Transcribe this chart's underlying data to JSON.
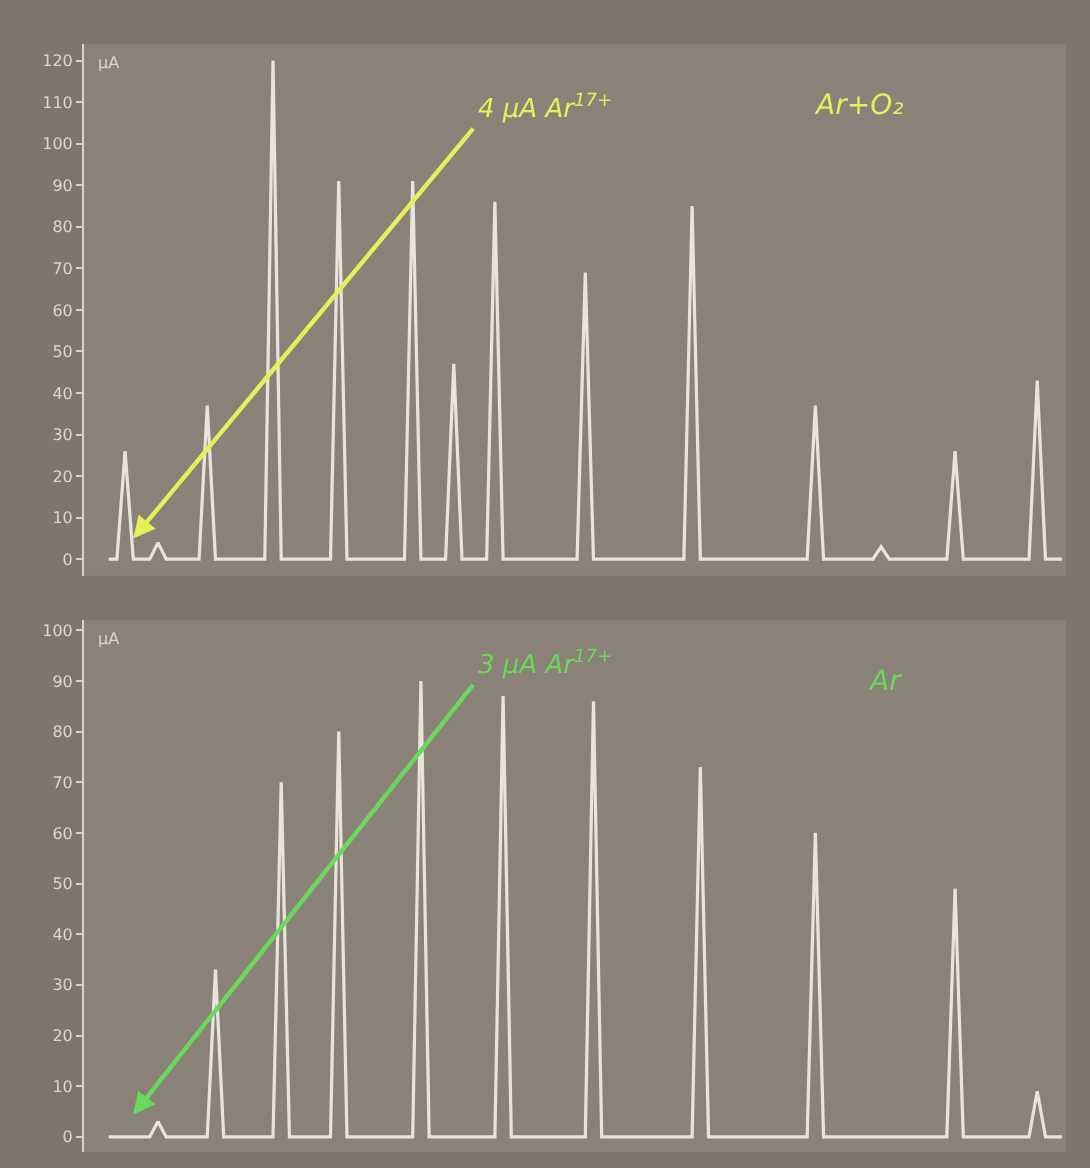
{
  "chart_data": [
    {
      "type": "line",
      "color": "#e8e4dc",
      "ylabel": "µA",
      "ylim": [
        -4,
        124
      ],
      "yticks": [
        0,
        10,
        20,
        30,
        40,
        50,
        60,
        70,
        80,
        90,
        100,
        110,
        120
      ],
      "grid": false,
      "tick_labels": "y",
      "marker": "none",
      "line_style": "solid",
      "annotations": [
        "4 µA Ar$^{17+}$",
        "Ar+O₂"
      ],
      "categories": [
        null,
        null,
        null,
        null,
        null,
        null,
        null,
        null,
        null,
        null,
        null,
        null,
        null,
        null,
        null,
        null,
        null,
        null,
        null,
        null,
        null,
        null,
        null,
        null,
        null,
        null,
        null,
        null,
        null,
        null,
        null,
        null,
        null,
        null,
        null,
        null,
        null,
        null,
        null,
        null,
        null,
        null,
        null,
        null,
        null,
        null,
        null,
        null,
        null,
        null,
        null,
        null,
        null,
        null,
        null,
        null,
        null,
        null,
        null,
        null,
        null,
        null,
        null,
        null,
        null,
        null,
        null,
        null,
        null,
        null,
        null,
        null,
        null,
        null,
        null,
        null,
        null,
        null,
        null,
        null,
        null,
        null,
        null,
        null,
        null,
        null,
        null,
        null,
        null,
        null,
        null,
        null,
        null,
        null,
        null,
        null,
        null,
        null,
        null,
        null,
        null,
        null,
        null,
        null,
        null,
        null,
        null,
        null,
        null,
        null,
        null,
        null,
        null,
        null,
        null,
        null,
        null
      ],
      "values": [
        0,
        0,
        26,
        0,
        0,
        0,
        4,
        0,
        0,
        0,
        0,
        0,
        37,
        0,
        0,
        0,
        0,
        0,
        0,
        0,
        120,
        0,
        0,
        0,
        0,
        0,
        0,
        0,
        91,
        0,
        0,
        0,
        0,
        0,
        0,
        0,
        0,
        91,
        0,
        0,
        0,
        0,
        47,
        0,
        0,
        0,
        0,
        86,
        0,
        0,
        0,
        0,
        0,
        0,
        0,
        0,
        0,
        0,
        69,
        0,
        0,
        0,
        0,
        0,
        0,
        0,
        0,
        0,
        0,
        0,
        0,
        85,
        0,
        0,
        0,
        0,
        0,
        0,
        0,
        0,
        0,
        0,
        0,
        0,
        0,
        0,
        37,
        0,
        0,
        0,
        0,
        0,
        0,
        0,
        3,
        0,
        0,
        0,
        0,
        0,
        0,
        0,
        0,
        26,
        0,
        0,
        0,
        0,
        0,
        0,
        0,
        0,
        0,
        43,
        0,
        0,
        0
      ]
    },
    {
      "type": "line",
      "color": "#e8e4dc",
      "ylabel": "µA",
      "ylim": [
        -3,
        102
      ],
      "yticks": [
        0,
        10,
        20,
        30,
        40,
        50,
        60,
        70,
        80,
        90,
        100
      ],
      "grid": false,
      "tick_labels": "y",
      "marker": "none",
      "line_style": "solid",
      "annotations": [
        "3 µA Ar$^{17+}$",
        "Ar"
      ],
      "categories": [
        null,
        null,
        null,
        null,
        null,
        null,
        null,
        null,
        null,
        null,
        null,
        null,
        null,
        null,
        null,
        null,
        null,
        null,
        null,
        null,
        null,
        null,
        null,
        null,
        null,
        null,
        null,
        null,
        null,
        null,
        null,
        null,
        null,
        null,
        null,
        null,
        null,
        null,
        null,
        null,
        null,
        null,
        null,
        null,
        null,
        null,
        null,
        null,
        null,
        null,
        null,
        null,
        null,
        null,
        null,
        null,
        null,
        null,
        null,
        null,
        null,
        null,
        null,
        null,
        null,
        null,
        null,
        null,
        null,
        null,
        null,
        null,
        null,
        null,
        null,
        null,
        null,
        null,
        null,
        null,
        null,
        null,
        null,
        null,
        null,
        null,
        null,
        null,
        null,
        null,
        null,
        null,
        null,
        null,
        null,
        null,
        null,
        null,
        null,
        null,
        null,
        null,
        null,
        null,
        null,
        null,
        null,
        null,
        null,
        null,
        null,
        null,
        null,
        null,
        null,
        null,
        null
      ],
      "values": [
        0,
        0,
        0,
        0,
        0,
        0,
        3,
        0,
        0,
        0,
        0,
        0,
        0,
        33,
        0,
        0,
        0,
        0,
        0,
        0,
        0,
        70,
        0,
        0,
        0,
        0,
        0,
        0,
        80,
        0,
        0,
        0,
        0,
        0,
        0,
        0,
        0,
        0,
        90,
        0,
        0,
        0,
        0,
        0,
        0,
        0,
        0,
        0,
        87,
        0,
        0,
        0,
        0,
        0,
        0,
        0,
        0,
        0,
        0,
        86,
        0,
        0,
        0,
        0,
        0,
        0,
        0,
        0,
        0,
        0,
        0,
        0,
        73,
        0,
        0,
        0,
        0,
        0,
        0,
        0,
        0,
        0,
        0,
        0,
        0,
        0,
        60,
        0,
        0,
        0,
        0,
        0,
        0,
        0,
        0,
        0,
        0,
        0,
        0,
        0,
        0,
        0,
        0,
        49,
        0,
        0,
        0,
        0,
        0,
        0,
        0,
        0,
        0,
        9,
        0,
        0,
        0
      ]
    }
  ]
}
